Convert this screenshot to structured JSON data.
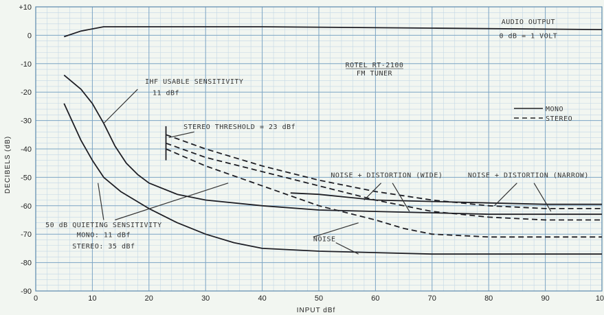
{
  "chart_data": {
    "type": "line",
    "title": "ROTEL RT-2100",
    "subtitle": "FM TUNER",
    "xlabel": "INPUT dBf",
    "ylabel": "DECIBELS (dB)",
    "xlim": [
      0,
      100
    ],
    "ylim": [
      -90,
      10
    ],
    "x_ticks": [
      "0",
      "10",
      "20",
      "30",
      "40",
      "50",
      "60",
      "70",
      "80",
      "90",
      "100"
    ],
    "y_ticks": [
      "+10",
      "0",
      "-10",
      "-20",
      "-30",
      "-40",
      "-50",
      "-60",
      "-70",
      "-80",
      "-90"
    ],
    "grid": true,
    "legend_position": "right",
    "legend": [
      {
        "label": "MONO",
        "dash": "solid"
      },
      {
        "label": "STEREO",
        "dash": "dashed"
      }
    ],
    "series": [
      {
        "name": "AUDIO OUTPUT",
        "style": "solid",
        "points": [
          [
            5,
            -0.5
          ],
          [
            8,
            1.5
          ],
          [
            12,
            3
          ],
          [
            20,
            3
          ],
          [
            40,
            3
          ],
          [
            70,
            2.5
          ],
          [
            100,
            2
          ]
        ]
      },
      {
        "name": "",
        "style": "solid",
        "points": [
          [
            5,
            -14
          ],
          [
            8,
            -19
          ],
          [
            10,
            -24
          ],
          [
            12,
            -31
          ],
          [
            14,
            -39
          ],
          [
            16,
            -45
          ],
          [
            18,
            -49
          ],
          [
            20,
            -52
          ],
          [
            25,
            -56
          ],
          [
            30,
            -58
          ],
          [
            40,
            -60
          ],
          [
            50,
            -61.5
          ],
          [
            60,
            -62
          ],
          [
            70,
            -62.5
          ],
          [
            80,
            -63
          ],
          [
            90,
            -63
          ],
          [
            100,
            -63
          ]
        ]
      },
      {
        "name": "",
        "style": "solid",
        "points": [
          [
            5,
            -24
          ],
          [
            8,
            -37
          ],
          [
            10,
            -44
          ],
          [
            12,
            -50
          ],
          [
            15,
            -55
          ],
          [
            20,
            -61
          ],
          [
            25,
            -66
          ],
          [
            30,
            -70
          ],
          [
            35,
            -73
          ],
          [
            40,
            -75
          ],
          [
            50,
            -76
          ],
          [
            60,
            -76.5
          ],
          [
            70,
            -77
          ],
          [
            80,
            -77
          ],
          [
            100,
            -77
          ]
        ]
      },
      {
        "name": "",
        "style": "solid",
        "points": [
          [
            45,
            -55.5
          ],
          [
            50,
            -56
          ],
          [
            60,
            -58
          ],
          [
            70,
            -58.5
          ],
          [
            80,
            -59
          ],
          [
            90,
            -59.5
          ],
          [
            100,
            -59.5
          ]
        ]
      },
      {
        "name": "",
        "style": "dashed",
        "points": [
          [
            23,
            -35
          ],
          [
            30,
            -40
          ],
          [
            40,
            -46
          ],
          [
            50,
            -51
          ],
          [
            60,
            -55
          ],
          [
            70,
            -58
          ],
          [
            80,
            -60
          ],
          [
            90,
            -61
          ],
          [
            100,
            -61
          ]
        ]
      },
      {
        "name": "",
        "style": "dashed",
        "points": [
          [
            23,
            -38
          ],
          [
            30,
            -43
          ],
          [
            40,
            -48
          ],
          [
            50,
            -53
          ],
          [
            60,
            -58
          ],
          [
            70,
            -62
          ],
          [
            80,
            -64
          ],
          [
            90,
            -65
          ],
          [
            100,
            -65
          ]
        ]
      },
      {
        "name": "",
        "style": "dashed",
        "points": [
          [
            23,
            -40
          ],
          [
            30,
            -46
          ],
          [
            40,
            -53
          ],
          [
            50,
            -60
          ],
          [
            60,
            -65
          ],
          [
            65,
            -68
          ],
          [
            70,
            -70
          ],
          [
            80,
            -71
          ],
          [
            100,
            -71
          ]
        ]
      }
    ],
    "annotations": [
      {
        "text": "AUDIO OUTPUT",
        "x": 87,
        "y": 4
      },
      {
        "text": "0 dB = 1 VOLT",
        "x": 87,
        "y": -1
      },
      {
        "text": "IHF USABLE SENSITIVITY",
        "x": 28,
        "y": -17
      },
      {
        "text": "11 dBf",
        "x": 23,
        "y": -21
      },
      {
        "text": "STEREO THRESHOLD = 23 dBf",
        "x": 36,
        "y": -33
      },
      {
        "text": "NOISE + DISTORTION (WIDE)",
        "x": 62,
        "y": -50
      },
      {
        "text": "NOISE + DISTORTION (NARROW)",
        "x": 87,
        "y": -50
      },
      {
        "text": "NOISE",
        "x": 51,
        "y": -72.5
      },
      {
        "text": "50 dB QUIETING SENSITIVITY",
        "x": 12,
        "y": -67.5
      },
      {
        "text": "MONO: 11 dBf",
        "x": 12,
        "y": -71
      },
      {
        "text": "STEREO: 35 dBf",
        "x": 12,
        "y": -75
      }
    ]
  }
}
